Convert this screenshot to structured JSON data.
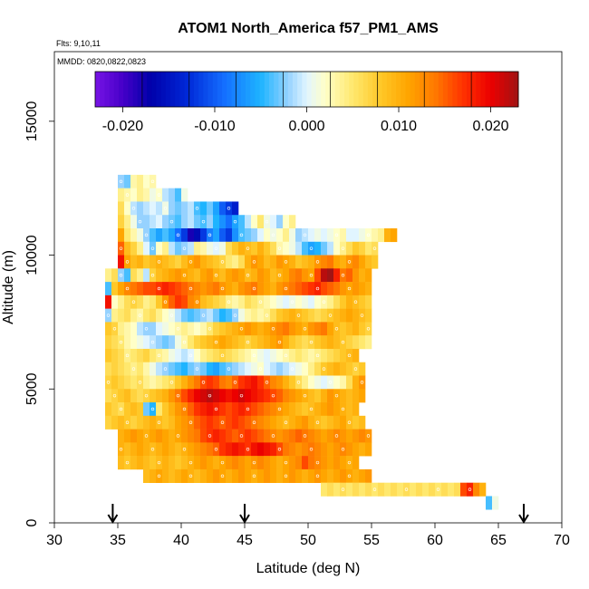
{
  "chart_data": {
    "type": "heatmap",
    "title": "ATOM1 North_America f57_PM1_AMS",
    "annotations": [
      "Flts: 9,10,11",
      "MMDD: 0820,0822,0823"
    ],
    "xlabel": "Latitude (deg N)",
    "ylabel": "Altitude (m)",
    "xlim": [
      30,
      70
    ],
    "ylim": [
      0,
      17600
    ],
    "x_ticks": [
      "30",
      "35",
      "40",
      "45",
      "50",
      "55",
      "60",
      "65",
      "70"
    ],
    "y_ticks": [
      "0",
      "5000",
      "10000",
      "15000"
    ],
    "colorbar": {
      "range": [
        -0.023,
        0.023
      ],
      "tick_labels": [
        "-0.020",
        "-0.010",
        "0.000",
        "0.010",
        "0.020"
      ],
      "tick_values": [
        -0.02,
        -0.01,
        0.0,
        0.01,
        0.02
      ]
    },
    "arrows_at_latitude": [
      34.6,
      45.0,
      67.0
    ],
    "grid": false,
    "heat_rows": [
      {
        "alt": 12750,
        "lat_start": 35.0,
        "vals": [
          -0.002,
          -0.003,
          0.003,
          0.004,
          0.002,
          0.003
        ]
      },
      {
        "alt": 12250,
        "lat_start": 35.0,
        "vals": [
          0.004,
          0.003,
          0.002,
          0.004,
          0.003,
          0.001,
          0.002,
          -0.001,
          -0.002,
          -0.004,
          0.001
        ]
      },
      {
        "alt": 11750,
        "lat_start": 35.0,
        "vals": [
          0.006,
          0.002,
          -0.001,
          -0.002,
          -0.001,
          0.0,
          -0.001,
          0.001,
          -0.002,
          -0.003,
          -0.002,
          -0.001,
          -0.004,
          -0.005,
          -0.003,
          -0.006,
          -0.01,
          -0.012,
          -0.014
        ]
      },
      {
        "alt": 11250,
        "lat_start": 35.0,
        "vals": [
          0.007,
          0.004,
          0.001,
          -0.002,
          -0.002,
          -0.001,
          0.0,
          -0.002,
          -0.003,
          -0.004,
          -0.002,
          -0.001,
          -0.003,
          -0.004,
          -0.002,
          -0.005,
          -0.007,
          -0.009,
          -0.006,
          -0.004,
          -0.001,
          0.002,
          0.005,
          0.001,
          0.0,
          -0.002,
          0.002,
          0.004
        ]
      },
      {
        "alt": 10750,
        "lat_start": 35.0,
        "vals": [
          0.011,
          0.005,
          0.003,
          0.001,
          -0.002,
          -0.004,
          -0.006,
          -0.004,
          -0.006,
          -0.009,
          -0.012,
          -0.018,
          -0.016,
          -0.012,
          -0.008,
          -0.006,
          -0.01,
          -0.012,
          -0.007,
          -0.004,
          -0.003,
          -0.002,
          0.0,
          0.002,
          0.001,
          0.002,
          0.004,
          0.001,
          -0.002,
          -0.001,
          0.0,
          0.001,
          0.0,
          0.001,
          0.002,
          0.003,
          0.0,
          0.0,
          0.001,
          0.002,
          0.003,
          0.004,
          0.01,
          0.011
        ]
      },
      {
        "alt": 10250,
        "lat_start": 35.0,
        "vals": [
          0.015,
          0.009,
          0.007,
          0.004,
          0.0,
          -0.003,
          0.002,
          0.004,
          -0.001,
          -0.003,
          -0.002,
          -0.001,
          0.004,
          0.003,
          0.001,
          0.0,
          0.001,
          0.006,
          0.008,
          0.01,
          0.009,
          0.008,
          0.01,
          0.008,
          0.006,
          0.003,
          0.002,
          0.001,
          -0.001,
          -0.004,
          -0.006,
          -0.005,
          -0.003,
          -0.001,
          0.002,
          0.004,
          0.006,
          0.008,
          0.007,
          0.005,
          0.006
        ]
      },
      {
        "alt": 9750,
        "lat_start": 35.0,
        "vals": [
          0.019,
          0.011,
          0.009,
          0.01,
          0.008,
          0.009,
          0.01,
          0.009,
          0.008,
          0.007,
          0.009,
          0.011,
          0.012,
          0.01,
          0.009,
          0.008,
          0.007,
          0.005,
          0.004,
          0.006,
          0.01,
          0.012,
          0.011,
          0.009,
          0.01,
          0.012,
          0.011,
          0.01,
          0.008,
          0.009,
          0.01,
          0.012,
          0.013,
          0.014,
          0.011,
          0.01,
          0.012,
          0.013,
          0.011,
          0.009,
          0.008
        ]
      },
      {
        "alt": 9250,
        "lat_start": 34.0,
        "vals": [
          0.004,
          0.006,
          -0.002,
          -0.004,
          0.006,
          0.004,
          -0.001,
          0.007,
          0.009,
          0.01,
          0.011,
          0.012,
          0.011,
          0.01,
          0.009,
          0.011,
          0.012,
          0.01,
          0.009,
          0.011,
          0.012,
          0.011,
          0.009,
          0.01,
          0.012,
          0.011,
          0.009,
          0.01,
          0.011,
          0.013,
          0.014,
          0.012,
          0.011,
          0.016,
          0.022,
          0.023,
          0.018,
          0.014,
          0.015,
          0.012,
          0.01,
          0.011
        ]
      },
      {
        "alt": 8750,
        "lat_start": 34.0,
        "vals": [
          -0.004,
          0.008,
          0.011,
          0.013,
          0.014,
          0.015,
          0.016,
          0.016,
          0.017,
          0.018,
          0.017,
          0.016,
          0.015,
          0.014,
          0.013,
          0.012,
          0.013,
          0.014,
          0.012,
          0.011,
          0.01,
          0.012,
          0.013,
          0.014,
          0.012,
          0.011,
          0.01,
          0.012,
          0.013,
          0.014,
          0.015,
          0.016,
          0.017,
          0.018,
          0.016,
          0.015,
          0.014,
          0.012,
          0.011,
          0.012,
          0.011,
          0.01
        ]
      },
      {
        "alt": 8250,
        "lat_start": 34.0,
        "vals": [
          0.019,
          0.002,
          0.004,
          0.006,
          0.007,
          0.006,
          0.004,
          0.005,
          0.008,
          0.012,
          0.015,
          0.017,
          0.016,
          0.013,
          0.012,
          0.009,
          0.008,
          0.007,
          0.006,
          0.004,
          0.003,
          0.004,
          0.006,
          0.005,
          0.004,
          0.003,
          0.002,
          0.001,
          0.0,
          0.001,
          0.002,
          0.001,
          0.0,
          0.002,
          0.003,
          0.004,
          0.006,
          0.008,
          0.01,
          0.009,
          0.008,
          0.007
        ]
      },
      {
        "alt": 7750,
        "lat_start": 34.0,
        "vals": [
          -0.002,
          0.004,
          0.005,
          0.006,
          0.004,
          0.003,
          0.005,
          0.006,
          0.004,
          0.002,
          0.001,
          -0.001,
          -0.003,
          -0.004,
          -0.003,
          -0.002,
          -0.001,
          -0.003,
          -0.005,
          -0.004,
          -0.002,
          0.001,
          0.003,
          0.004,
          0.003,
          0.004,
          0.006,
          0.008,
          0.009,
          0.01,
          0.009,
          0.008,
          0.007,
          0.006,
          0.007,
          0.008,
          0.009,
          0.01,
          0.011,
          0.01,
          0.009,
          0.008
        ]
      },
      {
        "alt": 7250,
        "lat_start": 34.0,
        "vals": [
          0.008,
          0.007,
          0.004,
          0.003,
          0.002,
          -0.001,
          -0.002,
          -0.002,
          0.0,
          0.001,
          0.002,
          0.003,
          0.004,
          0.003,
          0.002,
          0.003,
          0.005,
          0.007,
          0.008,
          0.009,
          0.01,
          0.011,
          0.012,
          0.011,
          0.01,
          0.011,
          0.012,
          0.013,
          0.014,
          0.012,
          0.011,
          0.01,
          0.012,
          0.013,
          0.014,
          0.011,
          0.009,
          0.008,
          0.009,
          0.01,
          0.008,
          0.007
        ]
      },
      {
        "alt": 6750,
        "lat_start": 34.0,
        "vals": [
          0.007,
          0.006,
          0.005,
          0.003,
          0.002,
          0.001,
          0.0,
          -0.001,
          -0.002,
          -0.003,
          -0.002,
          0.001,
          0.003,
          0.005,
          0.007,
          0.008,
          0.009,
          0.01,
          0.011,
          0.01,
          0.009,
          0.008,
          0.007,
          0.008,
          0.009,
          0.01,
          0.011,
          0.012,
          0.01,
          0.008,
          0.007,
          0.006,
          0.007,
          0.008,
          0.009,
          0.01,
          0.009,
          0.008,
          0.007,
          0.006,
          0.005,
          0.004
        ]
      },
      {
        "alt": 6250,
        "lat_start": 34.0,
        "vals": [
          0.008,
          0.007,
          0.006,
          0.004,
          0.005,
          0.006,
          0.007,
          0.005,
          0.004,
          0.003,
          0.001,
          0.0,
          -0.001,
          0.0,
          0.002,
          0.004,
          0.005,
          0.006,
          0.007,
          0.006,
          0.005,
          0.004,
          0.003,
          0.002,
          0.001,
          0.0,
          0.001,
          0.002,
          0.003,
          0.004,
          0.005,
          0.004,
          0.003,
          0.004,
          0.005,
          0.006,
          0.007,
          0.008,
          0.009,
          0.01
        ]
      },
      {
        "alt": 5750,
        "lat_start": 34.0,
        "vals": [
          0.006,
          0.007,
          0.006,
          0.005,
          0.004,
          0.005,
          0.003,
          0.001,
          -0.001,
          -0.002,
          -0.003,
          -0.004,
          -0.005,
          -0.003,
          -0.002,
          -0.003,
          -0.005,
          -0.006,
          -0.004,
          -0.003,
          -0.002,
          -0.001,
          0.0,
          0.001,
          0.002,
          0.0,
          -0.001,
          -0.002,
          -0.001,
          0.0,
          0.001,
          0.002,
          0.004,
          0.006,
          0.008,
          0.009,
          0.01,
          0.009,
          0.008,
          0.007,
          0.008
        ]
      },
      {
        "alt": 5250,
        "lat_start": 34.0,
        "vals": [
          0.007,
          0.008,
          0.007,
          0.006,
          0.005,
          0.006,
          0.004,
          0.003,
          0.004,
          0.005,
          0.006,
          0.008,
          0.01,
          0.012,
          0.014,
          0.016,
          0.017,
          0.016,
          0.014,
          0.013,
          0.015,
          0.017,
          0.018,
          0.019,
          0.017,
          0.015,
          0.013,
          0.012,
          0.01,
          0.008,
          0.006,
          0.004,
          0.002,
          0.001,
          0.0,
          0.001,
          0.002,
          0.003,
          0.006,
          0.01,
          0.012
        ]
      },
      {
        "alt": 4750,
        "lat_start": 34.0,
        "vals": [
          0.006,
          0.007,
          0.008,
          0.009,
          0.007,
          0.006,
          0.007,
          0.008,
          0.009,
          0.01,
          0.012,
          0.014,
          0.016,
          0.018,
          0.02,
          0.021,
          0.022,
          0.021,
          0.02,
          0.019,
          0.02,
          0.021,
          0.02,
          0.019,
          0.018,
          0.017,
          0.016,
          0.015,
          0.013,
          0.012,
          0.011,
          0.01,
          0.009,
          0.008,
          0.01,
          0.012,
          0.011,
          0.01,
          0.009,
          0.01,
          0.011
        ]
      },
      {
        "alt": 4250,
        "lat_start": 34.0,
        "vals": [
          0.008,
          0.007,
          0.006,
          0.008,
          0.009,
          0.008,
          -0.003,
          -0.005,
          0.005,
          0.008,
          0.01,
          0.012,
          0.013,
          0.015,
          0.017,
          0.018,
          0.019,
          0.018,
          0.017,
          0.016,
          0.017,
          0.018,
          0.017,
          0.016,
          0.015,
          0.014,
          0.013,
          0.012,
          0.011,
          0.01,
          0.009,
          0.008,
          0.009,
          0.01,
          0.011,
          0.012,
          0.011,
          0.01,
          0.009,
          0.01
        ]
      },
      {
        "alt": 3750,
        "lat_start": 34.0,
        "vals": [
          0.007,
          0.008,
          0.009,
          0.008,
          0.007,
          0.008,
          0.009,
          0.01,
          0.009,
          0.008,
          0.009,
          0.011,
          0.012,
          0.013,
          0.015,
          0.016,
          0.017,
          0.016,
          0.015,
          0.016,
          0.017,
          0.016,
          0.015,
          0.014,
          0.013,
          0.012,
          0.011,
          0.01,
          0.009,
          0.01,
          0.011,
          0.012,
          0.01,
          0.009,
          0.008,
          0.009,
          0.01,
          0.011,
          0.009,
          0.008,
          0.009
        ]
      },
      {
        "alt": 3250,
        "lat_start": 35.0,
        "vals": [
          0.01,
          0.011,
          0.012,
          0.011,
          0.01,
          0.011,
          0.012,
          0.011,
          0.01,
          0.011,
          0.012,
          0.013,
          0.014,
          0.016,
          0.017,
          0.018,
          0.017,
          0.016,
          0.015,
          0.016,
          0.017,
          0.016,
          0.015,
          0.014,
          0.013,
          0.012,
          0.013,
          0.014,
          0.015,
          0.014,
          0.013,
          0.012,
          0.011,
          0.012,
          0.013,
          0.012,
          0.011,
          0.012,
          0.013,
          0.012
        ]
      },
      {
        "alt": 2750,
        "lat_start": 35.0,
        "vals": [
          0.01,
          0.009,
          0.01,
          0.011,
          0.01,
          0.009,
          0.01,
          0.011,
          0.01,
          0.009,
          0.01,
          0.011,
          0.012,
          0.013,
          0.014,
          0.015,
          0.017,
          0.018,
          0.019,
          0.018,
          0.017,
          0.019,
          0.02,
          0.019,
          0.018,
          0.016,
          0.014,
          0.013,
          0.012,
          0.013,
          0.014,
          0.013,
          0.012,
          0.011,
          0.012,
          0.013,
          0.012,
          0.011,
          0.01,
          0.011
        ]
      },
      {
        "alt": 2250,
        "lat_start": 35.0,
        "vals": [
          0.009,
          0.008,
          0.009,
          0.01,
          0.009,
          0.008,
          0.009,
          0.01,
          0.009,
          0.008,
          0.009,
          0.01,
          0.011,
          0.012,
          0.011,
          0.01,
          0.011,
          0.012,
          0.013,
          0.012,
          0.011,
          0.012,
          0.013,
          0.012,
          0.011,
          0.01,
          0.011,
          0.012,
          0.013,
          0.016,
          0.014,
          0.013,
          0.012,
          0.011,
          0.012,
          0.011,
          0.01,
          0.011
        ]
      },
      {
        "alt": 1750,
        "lat_start": 37.0,
        "vals": [
          0.009,
          0.01,
          0.011,
          0.01,
          0.009,
          0.01,
          0.011,
          0.01,
          0.009,
          0.01,
          0.011,
          0.012,
          0.011,
          0.01,
          0.011,
          0.012,
          0.011,
          0.01,
          0.011,
          0.012,
          0.011,
          0.01,
          0.011,
          0.012,
          0.011,
          0.01,
          0.011,
          0.012,
          0.011,
          0.01,
          0.011,
          0.012,
          0.011,
          0.01,
          0.011,
          0.012
        ]
      },
      {
        "alt": 1250,
        "lat_start": 51.0,
        "vals": [
          0.005,
          0.006,
          0.005,
          0.006,
          0.005,
          0.006,
          0.005,
          0.006,
          0.005,
          0.006,
          0.005,
          0.006,
          0.005,
          0.006,
          0.005,
          0.006,
          0.005,
          0.006,
          0.005,
          0.006,
          0.005,
          0.006,
          0.016,
          0.018,
          0.013,
          0.01
        ]
      },
      {
        "alt": 750,
        "lat_start": 64.0,
        "vals": [
          -0.004,
          0.001
        ]
      }
    ]
  }
}
